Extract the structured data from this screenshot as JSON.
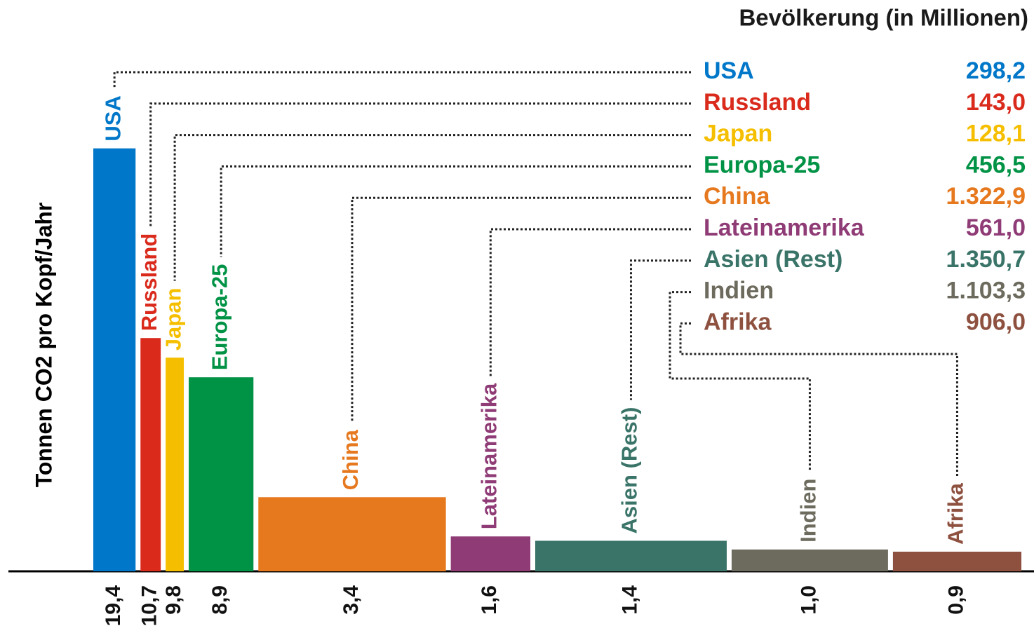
{
  "chart_data": {
    "type": "variable-width-bar",
    "ylabel": "Tonnen CO2 pro Kopf/Jahr",
    "legend_title": "Bevölkerung (in Millionen)",
    "categories": [
      "USA",
      "Russland",
      "Japan",
      "Europa-25",
      "China",
      "Lateinamerika",
      "Asien (Rest)",
      "Indien",
      "Afrika"
    ],
    "values": [
      19.4,
      10.7,
      9.8,
      8.9,
      3.4,
      1.6,
      1.4,
      1.0,
      0.9
    ],
    "value_labels": [
      "19,4",
      "10,7",
      "9,8",
      "8,9",
      "3,4",
      "1,6",
      "1,4",
      "1,0",
      "0,9"
    ],
    "population": [
      298.2,
      143.0,
      128.1,
      456.5,
      1322.9,
      561.0,
      1350.7,
      1103.3,
      906.0
    ],
    "population_labels": [
      "298,2",
      "143,0",
      "128,1",
      "456,5",
      "1.322,9",
      "561,0",
      "1.350,7",
      "1.103,3",
      "906,0"
    ],
    "colors": [
      "#0077c8",
      "#d92a1c",
      "#f5bf00",
      "#009245",
      "#e6781e",
      "#8f3b76",
      "#3a7468",
      "#6d6b5e",
      "#8e5140"
    ],
    "ylim": [
      0,
      20
    ]
  }
}
